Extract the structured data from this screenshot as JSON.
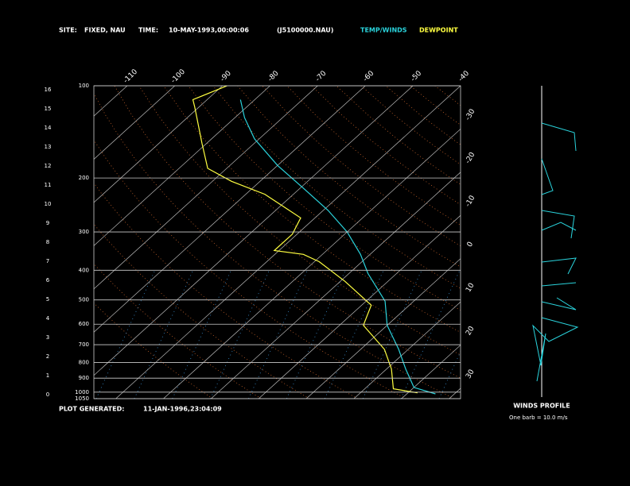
{
  "header": {
    "site_label": "SITE:",
    "site": "FIXED, NAU",
    "time_label": "TIME:",
    "time": "10-MAY-1993,00:00:06",
    "file": "(J5100000.NAU)"
  },
  "chart_data": {
    "type": "skewt",
    "series": [
      {
        "name": "TEMP/WINDS",
        "color": "#2ad3dc",
        "pressure": [
          1013,
          965,
          840,
          725,
          605,
          505,
          410,
          355,
          300,
          255,
          217,
          182,
          149,
          127,
          111
        ],
        "values": [
          26,
          20,
          14,
          8,
          0,
          -6,
          -16,
          -22,
          -30,
          -39,
          -49,
          -60,
          -71,
          -78,
          -83
        ]
      },
      {
        "name": "DEWPOINT",
        "color": "#ffff40",
        "pressure": [
          1005,
          975,
          840,
          725,
          605,
          520,
          435,
          375,
          355,
          345,
          305,
          270,
          226,
          205,
          186,
          154,
          117,
          111,
          100
        ],
        "values": [
          22,
          16,
          11,
          5,
          -5,
          -8,
          -19,
          -29,
          -34,
          -41,
          -41,
          -43,
          -56,
          -66,
          -74,
          -81,
          -91,
          -93,
          -89
        ]
      }
    ],
    "log_y": true,
    "ylim": [
      1050,
      100
    ],
    "yticks": [
      100,
      200,
      300,
      400,
      500,
      600,
      700,
      800,
      900,
      1000,
      1050
    ],
    "xlim": [
      -117,
      -40
    ],
    "xticks_top": [
      -110,
      -100,
      -90,
      -80,
      -70,
      -60,
      -50,
      -40
    ],
    "xticks_right": [
      -30,
      -20,
      -10,
      0,
      10,
      20,
      30
    ],
    "zlim": [
      0,
      16
    ],
    "zticks": [
      0,
      1,
      2,
      3,
      4,
      5,
      6,
      7,
      8,
      9,
      10,
      11,
      12,
      13,
      14,
      15,
      16
    ],
    "grid": true,
    "footer_label": "PLOT GENERATED:",
    "footer_time": "11-JAN-1996,23:04:09",
    "wind_title": "WINDS PROFILE",
    "wind_note": "One barb = 10.0 m/s"
  }
}
